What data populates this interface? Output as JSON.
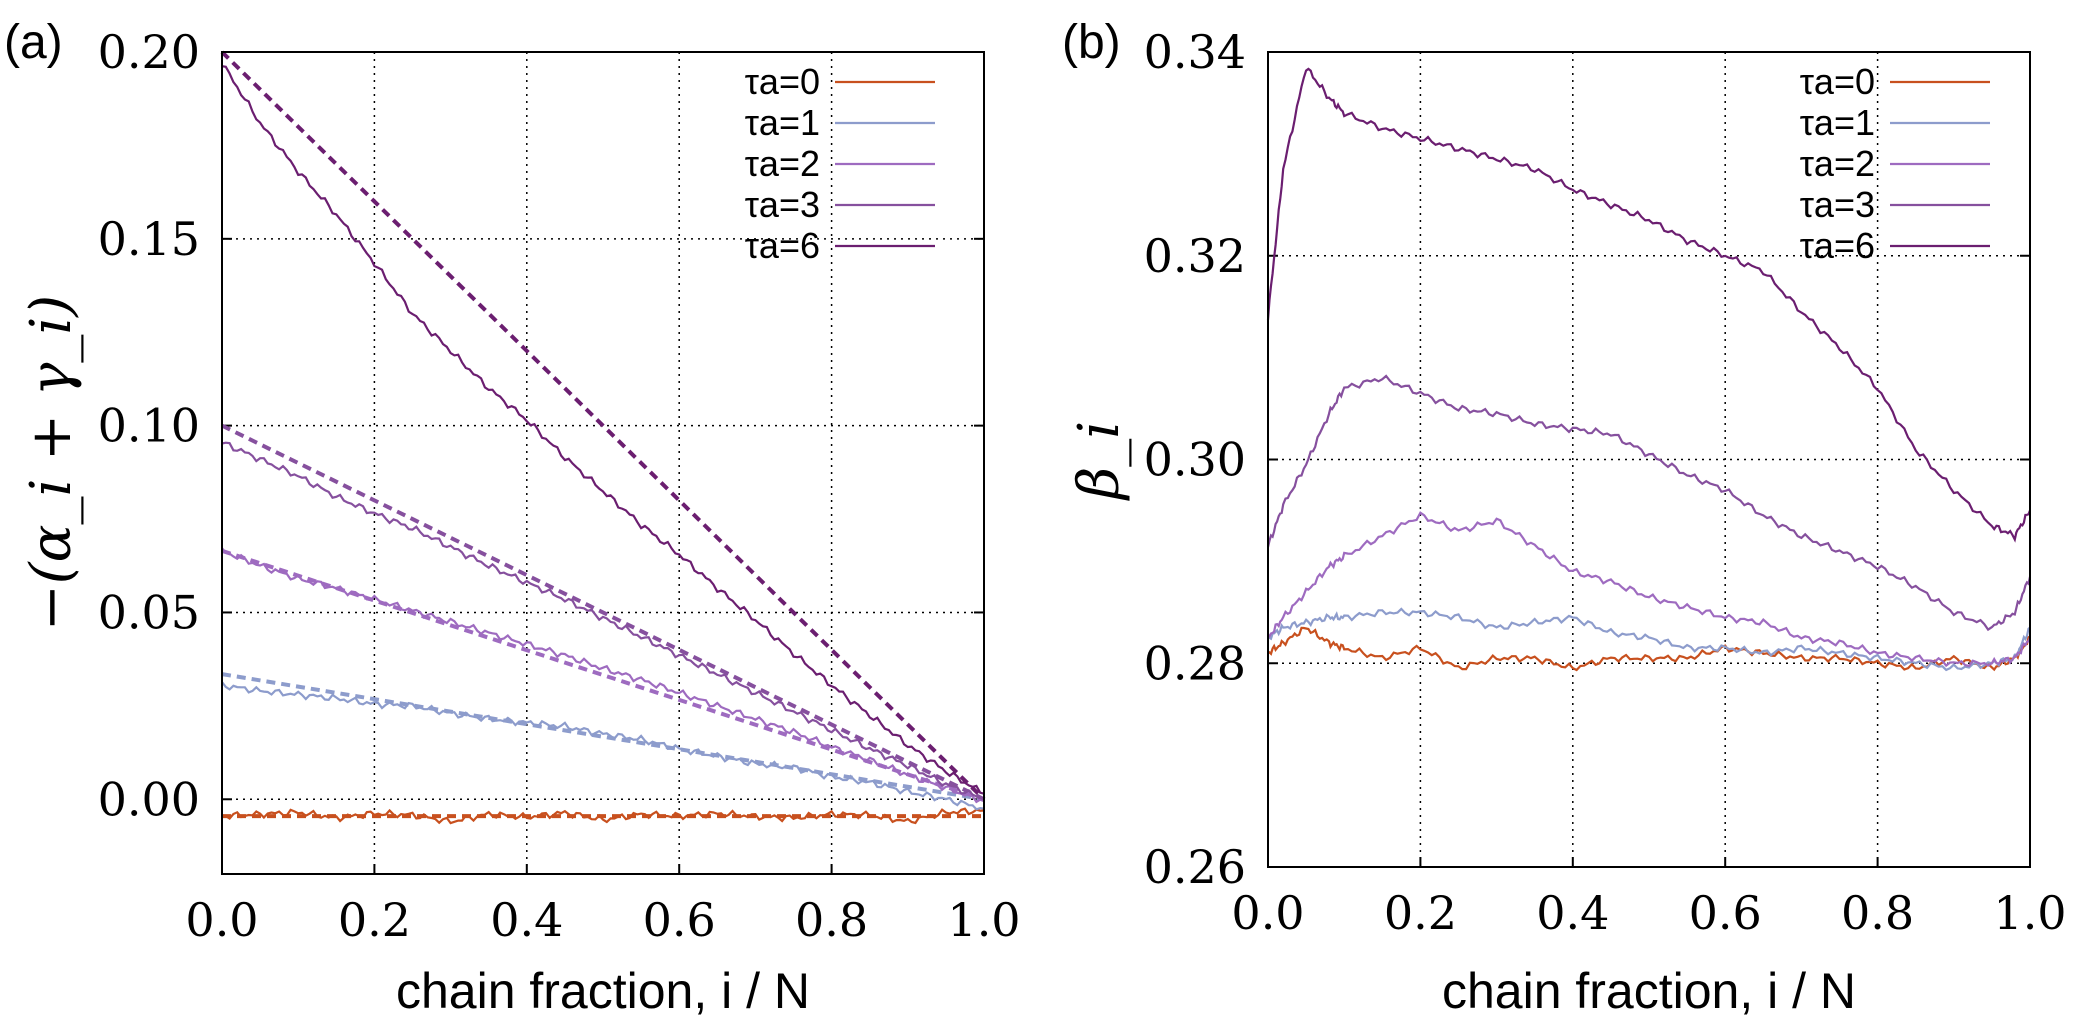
{
  "chart_data": [
    {
      "panel_label": "(a)",
      "type": "line",
      "title": "",
      "xlabel": "chain fraction, i / N",
      "ylabel": "−(α_i + γ_i)",
      "xlim": [
        0.0,
        1.0
      ],
      "ylim": [
        -0.02,
        0.2
      ],
      "xticks": [
        "0.0",
        "0.2",
        "0.4",
        "0.6",
        "0.8",
        "1.0"
      ],
      "yticks": [
        "0.00",
        "0.05",
        "0.10",
        "0.15",
        "0.20"
      ],
      "ytick_values": [
        0.0,
        0.05,
        0.1,
        0.15,
        0.2
      ],
      "grid": true,
      "legend_position": "top-right",
      "x": [
        0.0,
        0.05,
        0.1,
        0.15,
        0.2,
        0.25,
        0.3,
        0.35,
        0.4,
        0.45,
        0.5,
        0.55,
        0.6,
        0.65,
        0.7,
        0.75,
        0.8,
        0.85,
        0.9,
        0.95,
        1.0
      ],
      "series": [
        {
          "name": "τa=0",
          "color": "#c8501e",
          "values": [
            -0.0045,
            -0.004,
            -0.0035,
            -0.005,
            -0.0038,
            -0.0042,
            -0.006,
            -0.004,
            -0.0048,
            -0.0036,
            -0.0055,
            -0.004,
            -0.0045,
            -0.0038,
            -0.0046,
            -0.005,
            -0.004,
            -0.0042,
            -0.006,
            -0.0035,
            -0.003
          ]
        },
        {
          "name": "τa=1",
          "color": "#8d9ccc",
          "values": [
            0.0305,
            0.029,
            0.028,
            0.027,
            0.0255,
            0.025,
            0.023,
            0.0215,
            0.0205,
            0.0195,
            0.0175,
            0.016,
            0.0135,
            0.0115,
            0.0095,
            0.0085,
            0.006,
            0.0045,
            0.002,
            0.0,
            -0.0025
          ]
        },
        {
          "name": "τa=2",
          "color": "#9e6bc0",
          "values": [
            0.0665,
            0.0625,
            0.059,
            0.0565,
            0.0535,
            0.0505,
            0.0475,
            0.0445,
            0.0415,
            0.0385,
            0.035,
            0.032,
            0.0285,
            0.025,
            0.0215,
            0.018,
            0.014,
            0.0105,
            0.0065,
            0.003,
            -0.0005
          ]
        },
        {
          "name": "τa=3",
          "color": "#86509e",
          "values": [
            0.0955,
            0.091,
            0.0865,
            0.081,
            0.0765,
            0.0725,
            0.0675,
            0.0625,
            0.058,
            0.0535,
            0.0485,
            0.0435,
            0.0385,
            0.0335,
            0.0285,
            0.0235,
            0.0185,
            0.0135,
            0.009,
            0.004,
            0.0
          ]
        },
        {
          "name": "τa=6",
          "color": "#6b1e70",
          "values": [
            0.197,
            0.181,
            0.168,
            0.1565,
            0.1435,
            0.13,
            0.12,
            0.11,
            0.1015,
            0.0915,
            0.0825,
            0.0735,
            0.0655,
            0.0565,
            0.048,
            0.039,
            0.0305,
            0.0225,
            0.0145,
            0.0075,
            0.0015
          ]
        }
      ],
      "fits": [
        {
          "name": "τa=0 fit",
          "color": "#c8501e",
          "start": -0.0045,
          "end": -0.0045
        },
        {
          "name": "τa=1 fit",
          "color": "#8d9ccc",
          "start": 0.0335,
          "end": 0.0
        },
        {
          "name": "τa=2 fit",
          "color": "#9e6bc0",
          "start": 0.0665,
          "end": 0.0
        },
        {
          "name": "τa=3 fit",
          "color": "#86509e",
          "start": 0.1,
          "end": 0.0
        },
        {
          "name": "τa=6 fit",
          "color": "#6b1e70",
          "start": 0.2,
          "end": 0.0
        }
      ]
    },
    {
      "panel_label": "(b)",
      "type": "line",
      "title": "",
      "xlabel": "chain fraction, i / N",
      "ylabel": "β_i",
      "xlim": [
        0.0,
        1.0
      ],
      "ylim": [
        0.26,
        0.34
      ],
      "xticks": [
        "0.0",
        "0.2",
        "0.4",
        "0.6",
        "0.8",
        "1.0"
      ],
      "yticks": [
        "0.26",
        "0.28",
        "0.30",
        "0.32",
        "0.34"
      ],
      "ytick_values": [
        0.26,
        0.28,
        0.3,
        0.32,
        0.34
      ],
      "grid": true,
      "legend_position": "top-right",
      "x": [
        0.0,
        0.02,
        0.05,
        0.08,
        0.1,
        0.15,
        0.2,
        0.25,
        0.3,
        0.35,
        0.4,
        0.45,
        0.5,
        0.55,
        0.6,
        0.65,
        0.7,
        0.75,
        0.8,
        0.85,
        0.9,
        0.95,
        0.98,
        1.0
      ],
      "series": [
        {
          "name": "τa=0",
          "color": "#c8501e",
          "values": [
            0.281,
            0.282,
            0.2835,
            0.282,
            0.2815,
            0.2805,
            0.2815,
            0.2795,
            0.2805,
            0.2805,
            0.2795,
            0.2805,
            0.2805,
            0.2805,
            0.2815,
            0.281,
            0.2805,
            0.2805,
            0.28,
            0.2795,
            0.2805,
            0.2795,
            0.2805,
            0.2825
          ]
        },
        {
          "name": "τa=1",
          "color": "#8d9ccc",
          "values": [
            0.2825,
            0.2835,
            0.284,
            0.2845,
            0.2845,
            0.285,
            0.285,
            0.2845,
            0.2835,
            0.284,
            0.2845,
            0.283,
            0.2825,
            0.2815,
            0.2815,
            0.281,
            0.2815,
            0.281,
            0.2805,
            0.28,
            0.2795,
            0.28,
            0.2805,
            0.2835
          ]
        },
        {
          "name": "τa=2",
          "color": "#9e6bc0",
          "values": [
            0.2825,
            0.2845,
            0.287,
            0.2895,
            0.2905,
            0.2925,
            0.2945,
            0.293,
            0.294,
            0.2915,
            0.289,
            0.288,
            0.2865,
            0.2855,
            0.2845,
            0.284,
            0.2825,
            0.282,
            0.281,
            0.2805,
            0.28,
            0.28,
            0.2805,
            0.2825
          ]
        },
        {
          "name": "τa=3",
          "color": "#86509e",
          "values": [
            0.2915,
            0.2955,
            0.2995,
            0.3045,
            0.307,
            0.308,
            0.3065,
            0.305,
            0.3045,
            0.3035,
            0.303,
            0.3025,
            0.3005,
            0.2985,
            0.297,
            0.2945,
            0.2925,
            0.291,
            0.2895,
            0.2875,
            0.285,
            0.2835,
            0.285,
            0.2885
          ]
        },
        {
          "name": "τa=6",
          "color": "#6b1e70",
          "values": [
            0.314,
            0.3285,
            0.3385,
            0.3355,
            0.334,
            0.3325,
            0.3315,
            0.3305,
            0.3295,
            0.3285,
            0.3265,
            0.325,
            0.3235,
            0.3215,
            0.32,
            0.3185,
            0.3145,
            0.311,
            0.307,
            0.301,
            0.297,
            0.2935,
            0.2925,
            0.295
          ]
        }
      ]
    }
  ]
}
